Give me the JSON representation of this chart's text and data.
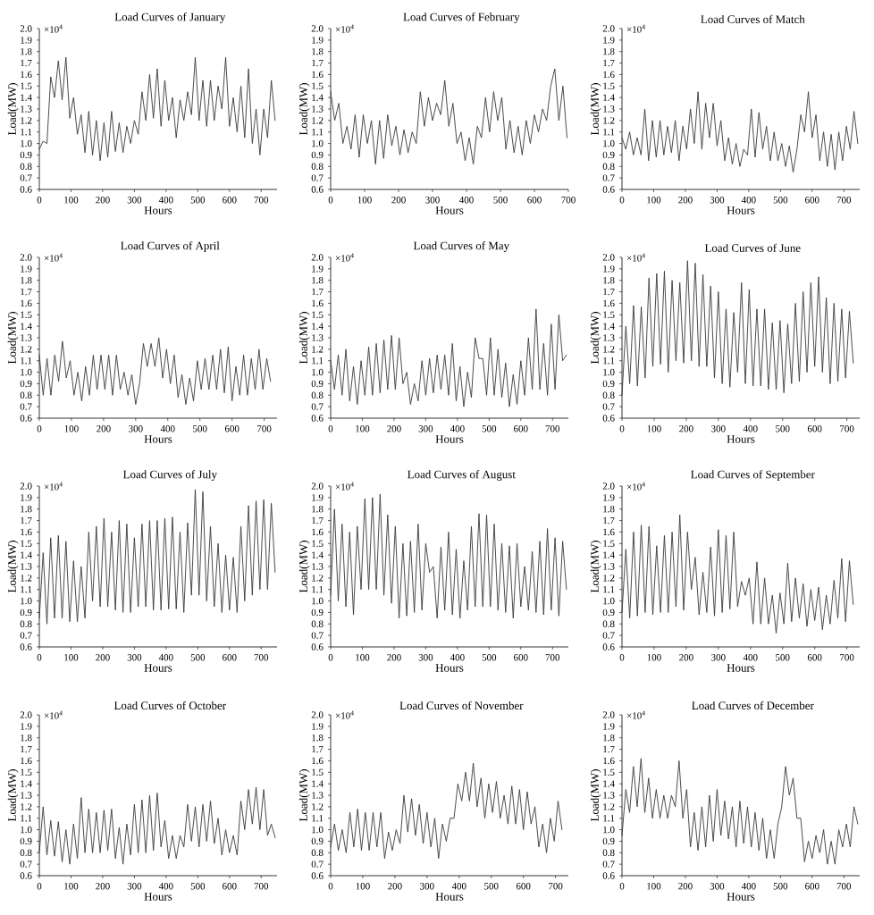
{
  "chart_data": [
    {
      "type": "line",
      "title": "Load Curves of January",
      "xlabel": "Hours",
      "ylabel": "Load(MW)",
      "annotations": [
        "×10$^{4}$"
      ],
      "color": "#383838",
      "xlim": [
        0,
        750
      ],
      "ylim": [
        0.6,
        2.0
      ],
      "xticks": [
        0,
        100,
        200,
        300,
        400,
        500,
        600,
        700
      ],
      "yticks": [
        {
          "value": 0.6,
          "label": "0.6"
        },
        {
          "value": 0.7,
          "label": "0.7"
        },
        {
          "value": 0.8,
          "label": "0.8"
        },
        {
          "value": 0.9,
          "label": "0.9"
        },
        {
          "value": 1.0,
          "label": "1.0"
        },
        {
          "value": 1.1,
          "label": "1.1"
        },
        {
          "value": 1.2,
          "label": "1.2"
        },
        {
          "value": 1.3,
          "label": "1.3"
        },
        {
          "value": 1.4,
          "label": "1.4"
        },
        {
          "value": 1.5,
          "label": "1.5"
        },
        {
          "value": 1.6,
          "label": "1.6"
        },
        {
          "value": 1.7,
          "label": "1.7"
        },
        {
          "value": 1.8,
          "label": "1.8"
        },
        {
          "value": 1.9,
          "label": "1.9"
        },
        {
          "value": 2.0,
          "label": "2.0"
        }
      ],
      "x": [
        0,
        12,
        24,
        36,
        48,
        60,
        72,
        84,
        96,
        108,
        120,
        132,
        144,
        156,
        168,
        180,
        192,
        204,
        216,
        228,
        240,
        252,
        264,
        276,
        288,
        300,
        312,
        324,
        336,
        348,
        360,
        372,
        384,
        396,
        408,
        420,
        432,
        444,
        456,
        468,
        480,
        492,
        504,
        516,
        528,
        540,
        552,
        564,
        576,
        588,
        600,
        612,
        624,
        636,
        648,
        660,
        672,
        684,
        696,
        708,
        720,
        732,
        744
      ],
      "values": [
        0.95,
        1.02,
        1.0,
        1.58,
        1.4,
        1.72,
        1.38,
        1.75,
        1.22,
        1.4,
        1.08,
        1.25,
        0.92,
        1.28,
        0.9,
        1.2,
        0.85,
        1.18,
        0.88,
        1.28,
        0.93,
        1.18,
        0.92,
        1.15,
        1.0,
        1.2,
        1.08,
        1.45,
        1.2,
        1.6,
        1.22,
        1.65,
        1.15,
        1.55,
        1.2,
        1.4,
        1.05,
        1.38,
        1.2,
        1.45,
        1.25,
        1.75,
        1.2,
        1.55,
        1.15,
        1.55,
        1.2,
        1.5,
        1.3,
        1.75,
        1.15,
        1.4,
        1.1,
        1.5,
        1.05,
        1.65,
        1.0,
        1.3,
        0.9,
        1.3,
        1.05,
        1.55,
        1.2
      ]
    },
    {
      "type": "line",
      "title": "Load Curves of February",
      "xlabel": "Hours",
      "ylabel": "Load(MW)",
      "annotations": [
        "×10$^{4}$"
      ],
      "color": "#383838",
      "xlim": [
        0,
        700
      ],
      "ylim": [
        0.6,
        2.0
      ],
      "xticks": [
        0,
        100,
        200,
        300,
        400,
        500,
        600,
        700
      ],
      "yticks": [
        {
          "value": 0.6,
          "label": "0.6"
        },
        {
          "value": 0.7,
          "label": "0.7"
        },
        {
          "value": 0.8,
          "label": "0.8"
        },
        {
          "value": 0.9,
          "label": "0.9"
        },
        {
          "value": 1.0,
          "label": "1.0"
        },
        {
          "value": 1.1,
          "label": "1.1"
        },
        {
          "value": 1.2,
          "label": "1.2"
        },
        {
          "value": 1.3,
          "label": "1.3"
        },
        {
          "value": 1.4,
          "label": "1.4"
        },
        {
          "value": 1.5,
          "label": "1.5"
        },
        {
          "value": 1.6,
          "label": "1.6"
        },
        {
          "value": 1.7,
          "label": "1.7"
        },
        {
          "value": 1.8,
          "label": "1.8"
        },
        {
          "value": 1.9,
          "label": "1.9"
        },
        {
          "value": 2.0,
          "label": "2.0"
        }
      ],
      "x": [
        0,
        12,
        24,
        36,
        48,
        60,
        72,
        84,
        96,
        108,
        120,
        132,
        144,
        156,
        168,
        180,
        192,
        204,
        216,
        228,
        240,
        252,
        264,
        276,
        288,
        300,
        312,
        324,
        336,
        348,
        360,
        372,
        384,
        396,
        408,
        420,
        432,
        444,
        456,
        468,
        480,
        492,
        504,
        516,
        528,
        540,
        552,
        564,
        576,
        588,
        600,
        612,
        624,
        636,
        648,
        660,
        672,
        684,
        696
      ],
      "values": [
        1.45,
        1.2,
        1.35,
        1.0,
        1.15,
        0.95,
        1.25,
        0.88,
        1.25,
        1.0,
        1.2,
        0.82,
        1.2,
        0.87,
        1.25,
        0.98,
        1.15,
        0.9,
        1.12,
        0.92,
        1.1,
        1.0,
        1.45,
        1.15,
        1.4,
        1.2,
        1.35,
        1.25,
        1.55,
        1.15,
        1.35,
        1.0,
        1.1,
        0.85,
        1.05,
        0.82,
        1.15,
        1.05,
        1.4,
        1.1,
        1.45,
        1.2,
        1.4,
        0.95,
        1.2,
        0.92,
        1.15,
        0.9,
        1.2,
        1.0,
        1.25,
        1.1,
        1.3,
        1.2,
        1.5,
        1.65,
        1.2,
        1.5,
        1.05
      ]
    },
    {
      "type": "line",
      "title": "Load Curves of Match",
      "xlabel": "Hours",
      "ylabel": "Load(MW)",
      "annotations": [
        "×10$^{4}$"
      ],
      "color": "#383838",
      "xlim": [
        0,
        750
      ],
      "ylim": [
        0.6,
        2.0
      ],
      "xticks": [
        0,
        100,
        200,
        300,
        400,
        500,
        600,
        700
      ],
      "yticks": [
        {
          "value": 0.6,
          "label": "0.6"
        },
        {
          "value": 0.7,
          "label": "0.7"
        },
        {
          "value": 0.8,
          "label": "0.8"
        },
        {
          "value": 0.9,
          "label": "0.9"
        },
        {
          "value": 1.0,
          "label": "1.0"
        },
        {
          "value": 1.1,
          "label": "1.1"
        },
        {
          "value": 1.2,
          "label": "1.2"
        },
        {
          "value": 1.3,
          "label": "1.3"
        },
        {
          "value": 1.4,
          "label": "1.4"
        },
        {
          "value": 1.5,
          "label": "1.5"
        },
        {
          "value": 1.6,
          "label": "1.6"
        },
        {
          "value": 1.7,
          "label": "1.7"
        },
        {
          "value": 1.8,
          "label": "1.8"
        },
        {
          "value": 1.9,
          "label": "1.9"
        },
        {
          "value": 2.0,
          "label": "2.0"
        }
      ],
      "x": [
        0,
        12,
        24,
        36,
        48,
        60,
        72,
        84,
        96,
        108,
        120,
        132,
        144,
        156,
        168,
        180,
        192,
        204,
        216,
        228,
        240,
        252,
        264,
        276,
        288,
        300,
        312,
        324,
        336,
        348,
        360,
        372,
        384,
        396,
        408,
        420,
        432,
        444,
        456,
        468,
        480,
        492,
        504,
        516,
        528,
        540,
        552,
        564,
        576,
        588,
        600,
        612,
        624,
        636,
        648,
        660,
        672,
        684,
        696,
        708,
        720,
        732,
        744
      ],
      "values": [
        1.05,
        0.95,
        1.1,
        0.9,
        1.05,
        0.9,
        1.3,
        0.85,
        1.2,
        0.88,
        1.2,
        0.9,
        1.15,
        0.92,
        1.2,
        0.85,
        1.15,
        0.95,
        1.3,
        1.0,
        1.45,
        0.95,
        1.35,
        1.05,
        1.35,
        0.98,
        1.2,
        0.85,
        1.05,
        0.82,
        1.0,
        0.8,
        0.95,
        0.9,
        1.3,
        0.88,
        1.27,
        0.95,
        1.15,
        0.85,
        1.1,
        0.85,
        1.0,
        0.8,
        0.98,
        0.75,
        0.95,
        1.25,
        1.1,
        1.45,
        1.05,
        1.25,
        0.85,
        1.1,
        0.8,
        1.08,
        0.77,
        1.1,
        0.85,
        1.15,
        0.95,
        1.28,
        1.0
      ]
    },
    {
      "type": "line",
      "title": "Load Curves of April",
      "xlabel": "Hours",
      "ylabel": "Load(MW)",
      "annotations": [
        "×10$^{4}$"
      ],
      "color": "#383838",
      "xlim": [
        0,
        740
      ],
      "ylim": [
        0.6,
        2.0
      ],
      "xticks": [
        0,
        100,
        200,
        300,
        400,
        500,
        600,
        700
      ],
      "yticks": [
        {
          "value": 0.6,
          "label": "0.6"
        },
        {
          "value": 0.7,
          "label": "0.7"
        },
        {
          "value": 0.8,
          "label": "0.8"
        },
        {
          "value": 0.9,
          "label": "0.9"
        },
        {
          "value": 1.0,
          "label": "1.0"
        },
        {
          "value": 1.1,
          "label": "1.1"
        },
        {
          "value": 1.2,
          "label": "1.2"
        },
        {
          "value": 1.3,
          "label": "1.3"
        },
        {
          "value": 1.4,
          "label": "1.4"
        },
        {
          "value": 1.5,
          "label": "1.5"
        },
        {
          "value": 1.6,
          "label": "1.6"
        },
        {
          "value": 1.7,
          "label": "1.7"
        },
        {
          "value": 1.8,
          "label": "1.8"
        },
        {
          "value": 1.9,
          "label": "1.9"
        },
        {
          "value": 2.0,
          "label": "2.0"
        }
      ],
      "x": [
        0,
        12,
        24,
        36,
        48,
        60,
        72,
        84,
        96,
        108,
        120,
        132,
        144,
        156,
        168,
        180,
        192,
        204,
        216,
        228,
        240,
        252,
        264,
        276,
        288,
        300,
        312,
        324,
        336,
        348,
        360,
        372,
        384,
        396,
        408,
        420,
        432,
        444,
        456,
        468,
        480,
        492,
        504,
        516,
        528,
        540,
        552,
        564,
        576,
        588,
        600,
        612,
        624,
        636,
        648,
        660,
        672,
        684,
        696,
        708,
        720
      ],
      "values": [
        1.15,
        0.8,
        1.12,
        0.8,
        1.15,
        0.92,
        1.27,
        0.95,
        1.1,
        0.8,
        1.0,
        0.75,
        1.05,
        0.8,
        1.15,
        0.85,
        1.15,
        0.85,
        1.15,
        0.8,
        1.15,
        0.85,
        1.0,
        0.8,
        0.98,
        0.72,
        0.9,
        1.25,
        1.05,
        1.25,
        1.05,
        1.3,
        0.95,
        1.2,
        0.9,
        1.15,
        0.78,
        0.98,
        0.72,
        0.95,
        0.75,
        1.1,
        0.85,
        1.12,
        0.85,
        1.15,
        0.85,
        1.2,
        0.82,
        1.22,
        0.75,
        1.05,
        0.8,
        1.15,
        0.8,
        1.12,
        0.85,
        1.2,
        0.85,
        1.12,
        0.92
      ]
    },
    {
      "type": "line",
      "title": "Load Curves of May",
      "xlabel": "Hours",
      "ylabel": "Load(MW)",
      "annotations": [
        "×10$^{4}$"
      ],
      "color": "#383838",
      "xlim": [
        0,
        750
      ],
      "ylim": [
        0.6,
        2.0
      ],
      "xticks": [
        0,
        100,
        200,
        300,
        400,
        500,
        600,
        700
      ],
      "yticks": [
        {
          "value": 0.6,
          "label": "0.6"
        },
        {
          "value": 0.7,
          "label": "0.7"
        },
        {
          "value": 0.8,
          "label": "0.8"
        },
        {
          "value": 0.9,
          "label": "0.9"
        },
        {
          "value": 1.0,
          "label": "1.0"
        },
        {
          "value": 1.1,
          "label": "1.1"
        },
        {
          "value": 1.2,
          "label": "1.2"
        },
        {
          "value": 1.3,
          "label": "1.3"
        },
        {
          "value": 1.4,
          "label": "1.4"
        },
        {
          "value": 1.5,
          "label": "1.5"
        },
        {
          "value": 1.6,
          "label": "1.6"
        },
        {
          "value": 1.7,
          "label": "1.7"
        },
        {
          "value": 1.8,
          "label": "1.8"
        },
        {
          "value": 1.9,
          "label": "1.9"
        },
        {
          "value": 2.0,
          "label": "2.0"
        }
      ],
      "x": [
        0,
        12,
        24,
        36,
        48,
        60,
        72,
        84,
        96,
        108,
        120,
        132,
        144,
        156,
        168,
        180,
        192,
        204,
        216,
        228,
        240,
        252,
        264,
        276,
        288,
        300,
        312,
        324,
        336,
        348,
        360,
        372,
        384,
        396,
        408,
        420,
        432,
        444,
        456,
        468,
        480,
        492,
        504,
        516,
        528,
        540,
        552,
        564,
        576,
        588,
        600,
        612,
        624,
        636,
        648,
        660,
        672,
        684,
        696,
        708,
        720,
        732,
        744
      ],
      "values": [
        1.1,
        0.85,
        1.15,
        0.8,
        1.2,
        0.75,
        1.05,
        0.72,
        1.1,
        0.8,
        1.22,
        0.8,
        1.25,
        0.82,
        1.28,
        0.85,
        1.32,
        0.85,
        1.3,
        0.9,
        1.0,
        0.72,
        0.9,
        0.75,
        1.1,
        0.8,
        1.12,
        0.82,
        1.15,
        0.85,
        1.15,
        0.8,
        1.25,
        0.75,
        1.05,
        0.7,
        1.0,
        0.78,
        1.3,
        1.12,
        1.12,
        0.8,
        1.3,
        0.8,
        1.2,
        0.78,
        1.08,
        0.7,
        0.98,
        0.72,
        1.1,
        0.8,
        1.3,
        0.85,
        1.55,
        0.85,
        1.25,
        0.8,
        1.42,
        0.85,
        1.5,
        1.1,
        1.15
      ]
    },
    {
      "type": "line",
      "title": "Load Curves of June",
      "xlabel": "Hours",
      "ylabel": "Load(MW)",
      "annotations": [
        "×10$^{4}$"
      ],
      "color": "#383838",
      "xlim": [
        0,
        740
      ],
      "ylim": [
        0.6,
        2.0
      ],
      "xticks": [
        0,
        100,
        200,
        300,
        400,
        500,
        600,
        700
      ],
      "yticks": [
        {
          "value": 0.6,
          "label": "0.6"
        },
        {
          "value": 0.7,
          "label": "0.7"
        },
        {
          "value": 0.8,
          "label": "0.8"
        },
        {
          "value": 0.9,
          "label": "0.9"
        },
        {
          "value": 1.0,
          "label": "1.0"
        },
        {
          "value": 1.1,
          "label": "1.1"
        },
        {
          "value": 1.2,
          "label": "1.2"
        },
        {
          "value": 1.3,
          "label": "1.3"
        },
        {
          "value": 1.4,
          "label": "1.4"
        },
        {
          "value": 1.5,
          "label": "1.5"
        },
        {
          "value": 1.6,
          "label": "1.6"
        },
        {
          "value": 1.7,
          "label": "1.7"
        },
        {
          "value": 1.8,
          "label": "1.8"
        },
        {
          "value": 1.9,
          "label": "1.9"
        },
        {
          "value": 2.0,
          "label": "2.0"
        }
      ],
      "x": [
        0,
        12,
        24,
        36,
        48,
        60,
        72,
        84,
        96,
        108,
        120,
        132,
        144,
        156,
        168,
        180,
        192,
        204,
        216,
        228,
        240,
        252,
        264,
        276,
        288,
        300,
        312,
        324,
        336,
        348,
        360,
        372,
        384,
        396,
        408,
        420,
        432,
        444,
        456,
        468,
        480,
        492,
        504,
        516,
        528,
        540,
        552,
        564,
        576,
        588,
        600,
        612,
        624,
        636,
        648,
        660,
        672,
        684,
        696,
        708,
        720
      ],
      "values": [
        0.8,
        1.4,
        0.9,
        1.58,
        0.88,
        1.57,
        0.95,
        1.82,
        1.05,
        1.86,
        1.07,
        1.88,
        1.0,
        1.8,
        1.1,
        1.78,
        1.08,
        1.97,
        1.1,
        1.95,
        1.05,
        1.85,
        1.05,
        1.75,
        0.95,
        1.7,
        0.9,
        1.55,
        0.87,
        1.52,
        1.0,
        1.78,
        0.9,
        1.72,
        0.88,
        1.55,
        0.88,
        1.55,
        0.85,
        1.43,
        0.85,
        1.45,
        0.82,
        1.42,
        0.9,
        1.6,
        0.92,
        1.7,
        1.0,
        1.78,
        1.05,
        1.83,
        1.0,
        1.65,
        0.9,
        1.6,
        0.92,
        1.55,
        0.95,
        1.53,
        1.08
      ]
    },
    {
      "type": "line",
      "title": "Load Curves of July",
      "xlabel": "Hours",
      "ylabel": "Load(MW)",
      "annotations": [
        "×10$^{4}$"
      ],
      "color": "#383838",
      "xlim": [
        0,
        750
      ],
      "ylim": [
        0.6,
        2.0
      ],
      "xticks": [
        0,
        100,
        200,
        300,
        400,
        500,
        600,
        700
      ],
      "yticks": [
        {
          "value": 0.6,
          "label": "0.6"
        },
        {
          "value": 0.7,
          "label": "0.7"
        },
        {
          "value": 0.8,
          "label": "0.8"
        },
        {
          "value": 0.9,
          "label": "0.9"
        },
        {
          "value": 1.0,
          "label": "1.0"
        },
        {
          "value": 1.1,
          "label": "1.1"
        },
        {
          "value": 1.2,
          "label": "1.2"
        },
        {
          "value": 1.3,
          "label": "1.3"
        },
        {
          "value": 1.4,
          "label": "1.4"
        },
        {
          "value": 1.5,
          "label": "1.5"
        },
        {
          "value": 1.6,
          "label": "1.6"
        },
        {
          "value": 1.7,
          "label": "1.7"
        },
        {
          "value": 1.8,
          "label": "1.8"
        },
        {
          "value": 1.9,
          "label": "1.9"
        },
        {
          "value": 2.0,
          "label": "2.0"
        }
      ],
      "x": [
        0,
        12,
        24,
        36,
        48,
        60,
        72,
        84,
        96,
        108,
        120,
        132,
        144,
        156,
        168,
        180,
        192,
        204,
        216,
        228,
        240,
        252,
        264,
        276,
        288,
        300,
        312,
        324,
        336,
        348,
        360,
        372,
        384,
        396,
        408,
        420,
        432,
        444,
        456,
        468,
        480,
        492,
        504,
        516,
        528,
        540,
        552,
        564,
        576,
        588,
        600,
        612,
        624,
        636,
        648,
        660,
        672,
        684,
        696,
        708,
        720,
        732,
        744
      ],
      "values": [
        0.85,
        1.42,
        0.8,
        1.55,
        0.85,
        1.57,
        0.85,
        1.52,
        0.82,
        1.35,
        0.82,
        1.3,
        0.85,
        1.6,
        1.0,
        1.65,
        0.95,
        1.72,
        0.95,
        1.6,
        0.92,
        1.7,
        0.9,
        1.67,
        0.9,
        1.55,
        0.95,
        1.67,
        0.95,
        1.7,
        0.92,
        1.7,
        0.92,
        1.72,
        0.93,
        1.73,
        0.93,
        1.6,
        0.9,
        1.68,
        1.05,
        1.97,
        1.05,
        1.95,
        1.0,
        1.65,
        0.95,
        1.5,
        0.9,
        1.4,
        0.92,
        1.38,
        0.9,
        1.65,
        1.0,
        1.83,
        1.05,
        1.87,
        1.1,
        1.88,
        1.1,
        1.85,
        1.25
      ]
    },
    {
      "type": "line",
      "title": "Load Curves of August",
      "xlabel": "Hours",
      "ylabel": "Load(MW)",
      "annotations": [
        "×10$^{4}$"
      ],
      "color": "#383838",
      "xlim": [
        0,
        750
      ],
      "ylim": [
        0.6,
        2.0
      ],
      "xticks": [
        0,
        100,
        200,
        300,
        400,
        500,
        600,
        700
      ],
      "yticks": [
        {
          "value": 0.6,
          "label": "0.6"
        },
        {
          "value": 0.7,
          "label": "0.7"
        },
        {
          "value": 0.8,
          "label": "0.8"
        },
        {
          "value": 0.9,
          "label": "0.9"
        },
        {
          "value": 1.0,
          "label": "1.0"
        },
        {
          "value": 1.1,
          "label": "1.1"
        },
        {
          "value": 1.2,
          "label": "1.2"
        },
        {
          "value": 1.3,
          "label": "1.3"
        },
        {
          "value": 1.4,
          "label": "1.4"
        },
        {
          "value": 1.5,
          "label": "1.5"
        },
        {
          "value": 1.6,
          "label": "1.6"
        },
        {
          "value": 1.7,
          "label": "1.7"
        },
        {
          "value": 1.8,
          "label": "1.8"
        },
        {
          "value": 1.9,
          "label": "1.9"
        },
        {
          "value": 2.0,
          "label": "2.0"
        }
      ],
      "x": [
        0,
        12,
        24,
        36,
        48,
        60,
        72,
        84,
        96,
        108,
        120,
        132,
        144,
        156,
        168,
        180,
        192,
        204,
        216,
        228,
        240,
        252,
        264,
        276,
        288,
        300,
        312,
        324,
        336,
        348,
        360,
        372,
        384,
        396,
        408,
        420,
        432,
        444,
        456,
        468,
        480,
        492,
        504,
        516,
        528,
        540,
        552,
        564,
        576,
        588,
        600,
        612,
        624,
        636,
        648,
        660,
        672,
        684,
        696,
        708,
        720,
        732,
        744
      ],
      "values": [
        1.05,
        1.8,
        1.0,
        1.67,
        0.95,
        1.6,
        0.88,
        1.65,
        1.1,
        1.89,
        1.1,
        1.9,
        1.1,
        1.93,
        1.05,
        1.75,
        0.98,
        1.65,
        0.85,
        1.5,
        0.87,
        1.52,
        0.9,
        1.67,
        0.92,
        1.5,
        1.25,
        1.3,
        0.85,
        1.47,
        0.92,
        1.6,
        0.88,
        1.45,
        0.85,
        1.35,
        0.92,
        1.65,
        0.95,
        1.76,
        0.95,
        1.75,
        0.95,
        1.67,
        0.92,
        1.5,
        0.9,
        1.48,
        0.85,
        1.5,
        0.95,
        1.3,
        0.92,
        1.43,
        0.9,
        1.52,
        0.88,
        1.63,
        0.92,
        1.55,
        0.87,
        1.52,
        1.1
      ]
    },
    {
      "type": "line",
      "title": "Load Curves of September",
      "xlabel": "Hours",
      "ylabel": "Load(MW)",
      "annotations": [
        "×10$^{4}$"
      ],
      "color": "#383838",
      "xlim": [
        0,
        740
      ],
      "ylim": [
        0.6,
        2.0
      ],
      "xticks": [
        0,
        100,
        200,
        300,
        400,
        500,
        600,
        700
      ],
      "yticks": [
        {
          "value": 0.6,
          "label": "0.6"
        },
        {
          "value": 0.7,
          "label": "0.7"
        },
        {
          "value": 0.8,
          "label": "0.8"
        },
        {
          "value": 0.9,
          "label": "0.9"
        },
        {
          "value": 1.0,
          "label": "1.0"
        },
        {
          "value": 1.1,
          "label": "1.1"
        },
        {
          "value": 1.2,
          "label": "1.2"
        },
        {
          "value": 1.3,
          "label": "1.3"
        },
        {
          "value": 1.4,
          "label": "1.4"
        },
        {
          "value": 1.5,
          "label": "1.5"
        },
        {
          "value": 1.6,
          "label": "1.6"
        },
        {
          "value": 1.7,
          "label": "1.7"
        },
        {
          "value": 1.8,
          "label": "1.8"
        },
        {
          "value": 1.9,
          "label": "1.9"
        },
        {
          "value": 2.0,
          "label": "2.0"
        }
      ],
      "x": [
        0,
        12,
        24,
        36,
        48,
        60,
        72,
        84,
        96,
        108,
        120,
        132,
        144,
        156,
        168,
        180,
        192,
        204,
        216,
        228,
        240,
        252,
        264,
        276,
        288,
        300,
        312,
        324,
        336,
        348,
        360,
        372,
        384,
        396,
        408,
        420,
        432,
        444,
        456,
        468,
        480,
        492,
        504,
        516,
        528,
        540,
        552,
        564,
        576,
        588,
        600,
        612,
        624,
        636,
        648,
        660,
        672,
        684,
        696,
        708,
        720
      ],
      "values": [
        0.9,
        1.45,
        0.85,
        1.6,
        0.87,
        1.66,
        0.9,
        1.65,
        0.88,
        1.48,
        0.9,
        1.57,
        0.9,
        1.6,
        0.95,
        1.75,
        0.92,
        1.6,
        1.1,
        1.38,
        0.88,
        1.25,
        0.9,
        1.47,
        0.87,
        1.62,
        0.9,
        1.57,
        0.93,
        1.6,
        0.95,
        1.17,
        1.05,
        1.2,
        0.8,
        1.34,
        0.8,
        1.2,
        0.8,
        1.05,
        0.72,
        1.07,
        0.8,
        1.33,
        0.82,
        1.2,
        0.85,
        1.15,
        0.78,
        1.1,
        0.83,
        1.12,
        0.75,
        1.05,
        0.8,
        1.18,
        0.85,
        1.37,
        0.82,
        1.35,
        0.97
      ]
    },
    {
      "type": "line",
      "title": "Load Curves of October",
      "xlabel": "Hours",
      "ylabel": "Load(MW)",
      "annotations": [
        "×10$^{4}$"
      ],
      "color": "#383838",
      "xlim": [
        0,
        750
      ],
      "ylim": [
        0.6,
        2.0
      ],
      "xticks": [
        0,
        100,
        200,
        300,
        400,
        500,
        600,
        700
      ],
      "yticks": [
        {
          "value": 0.6,
          "label": "0.6"
        },
        {
          "value": 0.7,
          "label": "0.7"
        },
        {
          "value": 0.8,
          "label": "0.8"
        },
        {
          "value": 0.9,
          "label": "0.9"
        },
        {
          "value": 1.0,
          "label": "1.0"
        },
        {
          "value": 1.1,
          "label": "1.1"
        },
        {
          "value": 1.2,
          "label": "1.2"
        },
        {
          "value": 1.3,
          "label": "1.3"
        },
        {
          "value": 1.4,
          "label": "1.4"
        },
        {
          "value": 1.5,
          "label": "1.5"
        },
        {
          "value": 1.6,
          "label": "1.6"
        },
        {
          "value": 1.7,
          "label": "1.7"
        },
        {
          "value": 1.8,
          "label": "1.8"
        },
        {
          "value": 1.9,
          "label": "1.9"
        },
        {
          "value": 2.0,
          "label": "2.0"
        }
      ],
      "x": [
        0,
        12,
        24,
        36,
        48,
        60,
        72,
        84,
        96,
        108,
        120,
        132,
        144,
        156,
        168,
        180,
        192,
        204,
        216,
        228,
        240,
        252,
        264,
        276,
        288,
        300,
        312,
        324,
        336,
        348,
        360,
        372,
        384,
        396,
        408,
        420,
        432,
        444,
        456,
        468,
        480,
        492,
        504,
        516,
        528,
        540,
        552,
        564,
        576,
        588,
        600,
        612,
        624,
        636,
        648,
        660,
        672,
        684,
        696,
        708,
        720,
        732,
        744
      ],
      "values": [
        0.8,
        1.2,
        0.78,
        1.08,
        0.77,
        1.07,
        0.72,
        1.0,
        0.7,
        1.05,
        0.75,
        1.28,
        0.8,
        1.18,
        0.8,
        1.15,
        0.8,
        1.17,
        0.82,
        1.18,
        0.75,
        1.02,
        0.7,
        1.05,
        0.78,
        1.22,
        0.8,
        1.26,
        0.8,
        1.3,
        0.82,
        1.32,
        0.85,
        1.08,
        0.75,
        0.95,
        0.75,
        0.95,
        0.85,
        1.22,
        0.9,
        1.2,
        0.85,
        1.22,
        0.9,
        1.25,
        0.88,
        1.1,
        0.78,
        1.0,
        0.8,
        0.95,
        0.78,
        1.25,
        1.0,
        1.35,
        1.05,
        1.37,
        1.0,
        1.35,
        0.95,
        1.05,
        0.93
      ]
    },
    {
      "type": "line",
      "title": "Load Curves of November",
      "xlabel": "Hours",
      "ylabel": "Load(MW)",
      "annotations": [
        "×10$^{4}$"
      ],
      "color": "#383838",
      "xlim": [
        0,
        740
      ],
      "ylim": [
        0.6,
        2.0
      ],
      "xticks": [
        0,
        100,
        200,
        300,
        400,
        500,
        600,
        700
      ],
      "yticks": [
        {
          "value": 0.6,
          "label": "0.6"
        },
        {
          "value": 0.7,
          "label": "0.7"
        },
        {
          "value": 0.8,
          "label": "0.8"
        },
        {
          "value": 0.9,
          "label": "0.9"
        },
        {
          "value": 1.0,
          "label": "1.0"
        },
        {
          "value": 1.1,
          "label": "1.1"
        },
        {
          "value": 1.2,
          "label": "1.2"
        },
        {
          "value": 1.3,
          "label": "1.3"
        },
        {
          "value": 1.4,
          "label": "1.4"
        },
        {
          "value": 1.5,
          "label": "1.5"
        },
        {
          "value": 1.6,
          "label": "1.6"
        },
        {
          "value": 1.7,
          "label": "1.7"
        },
        {
          "value": 1.8,
          "label": "1.8"
        },
        {
          "value": 1.9,
          "label": "1.9"
        },
        {
          "value": 2.0,
          "label": "2.0"
        }
      ],
      "x": [
        0,
        12,
        24,
        36,
        48,
        60,
        72,
        84,
        96,
        108,
        120,
        132,
        144,
        156,
        168,
        180,
        192,
        204,
        216,
        228,
        240,
        252,
        264,
        276,
        288,
        300,
        312,
        324,
        336,
        348,
        360,
        372,
        384,
        396,
        408,
        420,
        432,
        444,
        456,
        468,
        480,
        492,
        504,
        516,
        528,
        540,
        552,
        564,
        576,
        588,
        600,
        612,
        624,
        636,
        648,
        660,
        672,
        684,
        696,
        708,
        720
      ],
      "values": [
        0.85,
        1.05,
        0.82,
        1.0,
        0.8,
        1.15,
        0.85,
        1.18,
        0.82,
        1.15,
        0.82,
        1.15,
        0.85,
        1.15,
        0.75,
        0.98,
        0.82,
        1.0,
        0.88,
        1.3,
        0.98,
        1.27,
        0.95,
        1.22,
        0.88,
        1.15,
        0.85,
        1.1,
        0.75,
        1.05,
        0.9,
        1.1,
        1.1,
        1.4,
        1.25,
        1.5,
        1.25,
        1.58,
        1.2,
        1.45,
        1.1,
        1.4,
        1.15,
        1.42,
        1.1,
        1.3,
        1.05,
        1.38,
        1.05,
        1.35,
        1.0,
        1.33,
        1.05,
        1.2,
        0.85,
        1.05,
        0.8,
        1.1,
        0.9,
        1.25,
        1.0
      ]
    },
    {
      "type": "line",
      "title": "Load Curves of December",
      "xlabel": "Hours",
      "ylabel": "Load(MW)",
      "annotations": [
        "×10$^{4}$"
      ],
      "color": "#383838",
      "xlim": [
        0,
        750
      ],
      "ylim": [
        0.6,
        2.0
      ],
      "xticks": [
        0,
        100,
        200,
        300,
        400,
        500,
        600,
        700
      ],
      "yticks": [
        {
          "value": 0.6,
          "label": "0.6"
        },
        {
          "value": 0.7,
          "label": "0.7"
        },
        {
          "value": 0.8,
          "label": "0.8"
        },
        {
          "value": 0.9,
          "label": "0.9"
        },
        {
          "value": 1.0,
          "label": "1.0"
        },
        {
          "value": 1.1,
          "label": "1.1"
        },
        {
          "value": 1.2,
          "label": "1.2"
        },
        {
          "value": 1.3,
          "label": "1.3"
        },
        {
          "value": 1.4,
          "label": "1.4"
        },
        {
          "value": 1.5,
          "label": "1.5"
        },
        {
          "value": 1.6,
          "label": "1.6"
        },
        {
          "value": 1.7,
          "label": "1.7"
        },
        {
          "value": 1.8,
          "label": "1.8"
        },
        {
          "value": 1.9,
          "label": "1.9"
        },
        {
          "value": 2.0,
          "label": "2.0"
        }
      ],
      "x": [
        0,
        12,
        24,
        36,
        48,
        60,
        72,
        84,
        96,
        108,
        120,
        132,
        144,
        156,
        168,
        180,
        192,
        204,
        216,
        228,
        240,
        252,
        264,
        276,
        288,
        300,
        312,
        324,
        336,
        348,
        360,
        372,
        384,
        396,
        408,
        420,
        432,
        444,
        456,
        468,
        480,
        492,
        504,
        516,
        528,
        540,
        552,
        564,
        576,
        588,
        600,
        612,
        624,
        636,
        648,
        660,
        672,
        684,
        696,
        708,
        720,
        732,
        744
      ],
      "values": [
        0.95,
        1.35,
        1.15,
        1.55,
        1.2,
        1.62,
        1.15,
        1.45,
        1.1,
        1.35,
        1.1,
        1.3,
        1.1,
        1.3,
        1.2,
        1.6,
        1.1,
        1.35,
        0.85,
        1.15,
        0.82,
        1.2,
        0.85,
        1.3,
        0.9,
        1.35,
        0.95,
        1.25,
        0.92,
        1.2,
        0.85,
        1.25,
        0.88,
        1.2,
        0.85,
        1.15,
        0.82,
        1.1,
        0.75,
        1.0,
        0.75,
        1.05,
        1.2,
        1.55,
        1.3,
        1.45,
        1.1,
        1.1,
        0.72,
        0.9,
        0.75,
        0.95,
        0.8,
        1.0,
        0.7,
        0.9,
        0.7,
        1.0,
        0.85,
        1.05,
        0.85,
        1.2,
        1.05
      ]
    }
  ]
}
